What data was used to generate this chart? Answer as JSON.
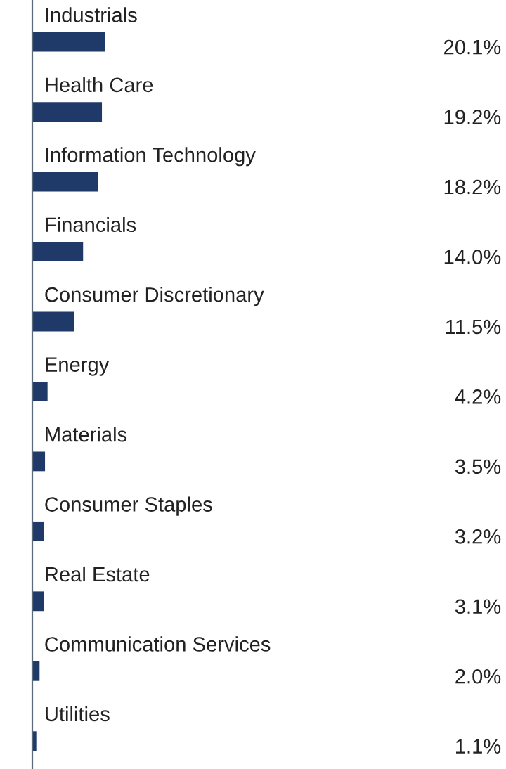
{
  "chart_data": {
    "type": "bar",
    "orientation": "horizontal",
    "categories": [
      "Industrials",
      "Health Care",
      "Information Technology",
      "Financials",
      "Consumer Discretionary",
      "Energy",
      "Materials",
      "Consumer Staples",
      "Real Estate",
      "Communication Services",
      "Utilities"
    ],
    "values": [
      20.1,
      19.2,
      18.2,
      14.0,
      11.5,
      4.2,
      3.5,
      3.2,
      3.1,
      2.0,
      1.1
    ],
    "value_labels": [
      "20.1%",
      "19.2%",
      "18.2%",
      "14.0%",
      "11.5%",
      "4.2%",
      "3.5%",
      "3.2%",
      "3.1%",
      "2.0%",
      "1.1%"
    ],
    "color": "#1f3a68",
    "tick_labels": false
  }
}
